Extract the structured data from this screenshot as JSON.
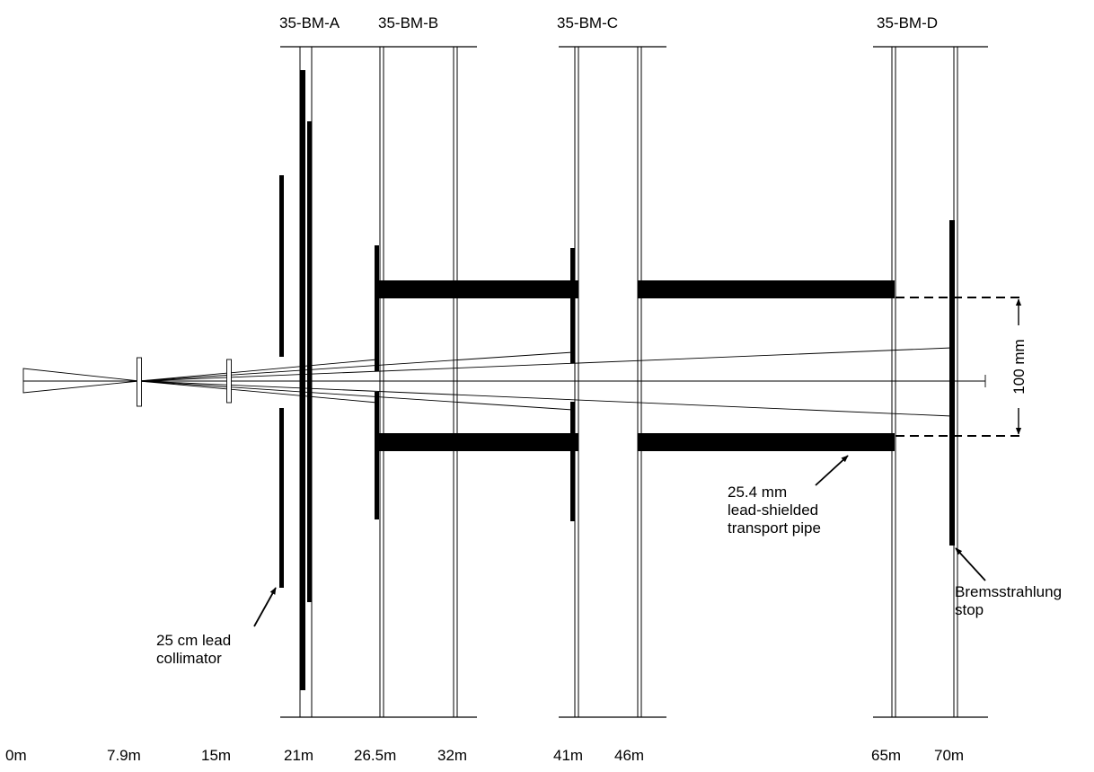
{
  "hutches": [
    {
      "name": "35-BM-A"
    },
    {
      "name": "35-BM-B"
    },
    {
      "name": "35-BM-C"
    },
    {
      "name": "35-BM-D"
    }
  ],
  "distance_markers": [
    "0m",
    "7.9m",
    "15m",
    "21m",
    "26.5m",
    "32m",
    "41m",
    "46m",
    "65m",
    "70m"
  ],
  "annotations": {
    "collimator": {
      "line1": "25 cm lead",
      "line2": "collimator"
    },
    "pipe": {
      "line1": "25.4 mm",
      "line2": "lead-shielded",
      "line3": "transport pipe"
    },
    "brems": {
      "line1": "Bremsstrahlung",
      "line2": "stop"
    },
    "dimension": "100 mm"
  }
}
